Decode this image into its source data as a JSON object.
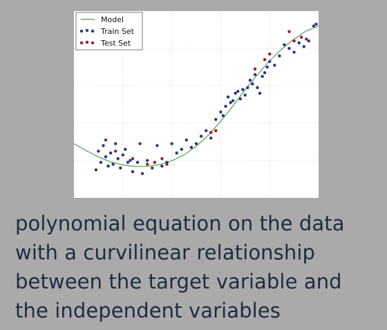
{
  "chart_data": {
    "type": "scatter",
    "title": "",
    "xlabel": "",
    "ylabel": "",
    "xlim": [
      0,
      10
    ],
    "ylim": [
      0,
      10
    ],
    "grid": true,
    "legend_position": "top-left",
    "series": [
      {
        "name": "Model",
        "kind": "line",
        "color": "#66aa66",
        "x": [
          0,
          0.5,
          1,
          1.5,
          2,
          2.5,
          3,
          3.5,
          4,
          4.5,
          5,
          5.5,
          6,
          6.5,
          7,
          7.5,
          8,
          8.5,
          9,
          9.5,
          10
        ],
        "y": [
          2.9,
          2.53,
          2.19,
          1.93,
          1.76,
          1.68,
          1.69,
          1.78,
          1.98,
          2.3,
          2.76,
          3.36,
          4.1,
          4.92,
          5.79,
          6.59,
          7.34,
          7.97,
          8.5,
          8.94,
          9.2
        ]
      },
      {
        "name": "Train Set",
        "kind": "points",
        "color": "#2a3580",
        "x": [
          0.9,
          1.0,
          1.1,
          1.2,
          1.3,
          1.4,
          1.5,
          1.6,
          1.7,
          1.8,
          1.9,
          2.0,
          2.1,
          2.2,
          2.3,
          2.4,
          2.6,
          2.8,
          3.0,
          3.2,
          3.4,
          3.6,
          3.8,
          4.0,
          4.2,
          4.4,
          4.6,
          4.8,
          5.0,
          5.2,
          5.4,
          5.6,
          5.8,
          6.0,
          6.1,
          6.2,
          6.3,
          6.4,
          6.5,
          6.6,
          6.7,
          6.8,
          6.9,
          7.0,
          7.1,
          7.2,
          7.3,
          7.4,
          7.5,
          7.6,
          7.7,
          7.8,
          7.9,
          8.0,
          8.2,
          8.4,
          8.6,
          8.8,
          9.0,
          9.2,
          9.4,
          9.6,
          9.8,
          9.9
        ],
        "y": [
          1.5,
          2.5,
          1.9,
          2.8,
          2.2,
          1.7,
          2.4,
          1.8,
          2.9,
          2.1,
          1.6,
          2.3,
          2.6,
          1.9,
          2.0,
          1.4,
          1.9,
          1.3,
          2.0,
          1.6,
          2.8,
          1.7,
          1.9,
          2.9,
          2.4,
          2.6,
          3.1,
          2.7,
          2.9,
          3.3,
          3.6,
          3.2,
          4.2,
          4.6,
          4.4,
          4.9,
          5.4,
          5.1,
          5.2,
          5.6,
          5.7,
          5.3,
          5.8,
          5.5,
          5.9,
          6.3,
          6.1,
          6.6,
          5.9,
          5.6,
          6.5,
          6.7,
          7.0,
          7.3,
          7.1,
          7.6,
          8.2,
          8.0,
          7.8,
          8.3,
          8.1,
          8.4,
          9.2,
          9.3
        ]
      },
      {
        "name": "Test Set",
        "kind": "points",
        "color": "#9b1d1d",
        "x": [
          1.3,
          1.7,
          2.4,
          2.7,
          3.0,
          3.3,
          3.6,
          3.8,
          5.6,
          5.8,
          7.4,
          7.8,
          8.0,
          8.8,
          9.0,
          9.3,
          9.5
        ],
        "y": [
          3.1,
          2.5,
          2.1,
          2.9,
          1.8,
          1.9,
          2.1,
          1.8,
          3.5,
          3.6,
          6.9,
          7.4,
          7.7,
          8.9,
          8.4,
          8.6,
          8.5
        ]
      }
    ]
  },
  "caption": {
    "lines": [
      "polynomial equation on the data",
      "with a curvilinear relationship",
      "between the target variable and",
      "the independent variables"
    ]
  }
}
